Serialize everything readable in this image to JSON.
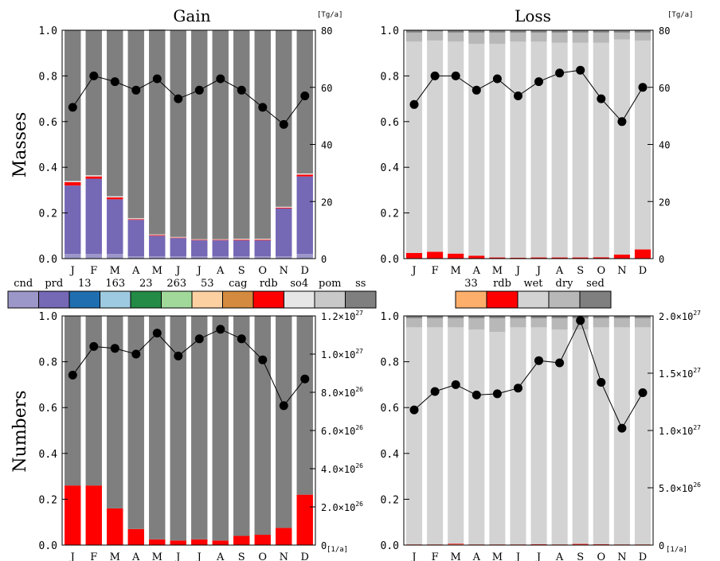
{
  "header": {
    "gain_title": "Gain",
    "loss_title": "Loss",
    "row_masses": "Masses",
    "row_numbers": "Numbers",
    "unit_tg_top_left": "[Tg/a]",
    "unit_tg_top_right": "[Tg/a]",
    "unit_per_a_bottom_left": "[1/a]",
    "unit_per_a_bottom_right": "[1/a]"
  },
  "legends": {
    "gain": {
      "labels": [
        "cnd",
        "prd",
        "13",
        "163",
        "23",
        "263",
        "53",
        "cag",
        "rdb",
        "so4",
        "pom",
        "ss"
      ],
      "colors": [
        "#9b97c8",
        "#7568b5",
        "#1f6fb0",
        "#9ecae1",
        "#238b45",
        "#a1d99b",
        "#fdd0a2",
        "#d48b3f",
        "#ff0000",
        "#e6e6e6",
        "#c8c8c8",
        "#7f7f7f"
      ]
    },
    "loss": {
      "labels": [
        "33",
        "rdb",
        "wet",
        "dry",
        "sed"
      ],
      "colors": [
        "#fdae6b",
        "#ff0000",
        "#d3d3d3",
        "#b8b8b8",
        "#7f7f7f"
      ]
    }
  },
  "colors": {
    "cnd": "#9b97c8",
    "prd": "#7568b5",
    "rdb": "#ff0000",
    "pom": "#c8c8c8",
    "ss": "#7f7f7f",
    "wet": "#d3d3d3",
    "dry": "#b8b8b8",
    "sed": "#7f7f7f",
    "c33": "#fdae6b",
    "marker": "#000000"
  },
  "chart_data": [
    {
      "id": "gain_masses",
      "type": "bar",
      "stacked": true,
      "categories": [
        "J",
        "F",
        "M",
        "A",
        "M",
        "J",
        "J",
        "A",
        "S",
        "O",
        "N",
        "D"
      ],
      "ylim": [
        0,
        1.0
      ],
      "y_ticks": [
        "0.0",
        "0.2",
        "0.4",
        "0.6",
        "0.8",
        "1.0"
      ],
      "y2lim": [
        0,
        80
      ],
      "y2_ticks": [
        "0",
        "20",
        "40",
        "60",
        "80"
      ],
      "y2_unit": "[Tg/a]",
      "series": [
        {
          "name": "cnd",
          "color": "#9b97c8",
          "values": [
            0.02,
            0.02,
            0.02,
            0.01,
            0.01,
            0.01,
            0.01,
            0.01,
            0.01,
            0.01,
            0.01,
            0.02
          ]
        },
        {
          "name": "prd",
          "color": "#7568b5",
          "values": [
            0.3,
            0.33,
            0.24,
            0.16,
            0.09,
            0.08,
            0.07,
            0.07,
            0.07,
            0.07,
            0.21,
            0.34
          ]
        },
        {
          "name": "rdb",
          "color": "#ff0000",
          "values": [
            0.015,
            0.01,
            0.008,
            0.003,
            0.003,
            0.002,
            0.002,
            0.002,
            0.003,
            0.003,
            0.003,
            0.008
          ]
        },
        {
          "name": "so4",
          "color": "#e6e6e6",
          "values": [
            0.005,
            0.005,
            0.005,
            0.004,
            0.003,
            0.003,
            0.003,
            0.003,
            0.004,
            0.004,
            0.004,
            0.005
          ]
        },
        {
          "name": "ss",
          "color": "#7f7f7f",
          "values": [
            0.66,
            0.635,
            0.727,
            0.823,
            0.897,
            0.905,
            0.915,
            0.915,
            0.913,
            0.913,
            0.773,
            0.627
          ]
        }
      ],
      "line": {
        "values": [
          53,
          64,
          62,
          59,
          63,
          56,
          59,
          63,
          59,
          53,
          47,
          57
        ]
      }
    },
    {
      "id": "loss_masses",
      "type": "bar",
      "stacked": true,
      "categories": [
        "J",
        "F",
        "M",
        "A",
        "M",
        "J",
        "J",
        "A",
        "S",
        "O",
        "N",
        "D"
      ],
      "ylim": [
        0,
        1.0
      ],
      "y_ticks": [
        "0.0",
        "0.2",
        "0.4",
        "0.6",
        "0.8",
        "1.0"
      ],
      "y2lim": [
        0,
        80
      ],
      "y2_ticks": [
        "0",
        "20",
        "40",
        "60",
        "80"
      ],
      "y2_unit": "[Tg/a]",
      "series": [
        {
          "name": "rdb",
          "color": "#ff0000",
          "values": [
            0.025,
            0.03,
            0.022,
            0.013,
            0.005,
            0.004,
            0.005,
            0.005,
            0.005,
            0.006,
            0.018,
            0.04
          ]
        },
        {
          "name": "wet",
          "color": "#d3d3d3",
          "values": [
            0.925,
            0.925,
            0.928,
            0.927,
            0.935,
            0.946,
            0.945,
            0.94,
            0.94,
            0.939,
            0.942,
            0.915
          ]
        },
        {
          "name": "dry",
          "color": "#b8b8b8",
          "values": [
            0.04,
            0.04,
            0.04,
            0.05,
            0.05,
            0.04,
            0.04,
            0.045,
            0.045,
            0.045,
            0.03,
            0.035
          ]
        },
        {
          "name": "sed",
          "color": "#7f7f7f",
          "values": [
            0.01,
            0.005,
            0.01,
            0.01,
            0.01,
            0.01,
            0.01,
            0.01,
            0.01,
            0.01,
            0.01,
            0.01
          ]
        }
      ],
      "line": {
        "values": [
          54,
          64,
          64,
          59,
          63,
          57,
          62,
          65,
          66,
          56,
          48,
          60
        ]
      }
    },
    {
      "id": "gain_numbers",
      "type": "bar",
      "stacked": true,
      "categories": [
        "J",
        "F",
        "M",
        "A",
        "M",
        "J",
        "J",
        "A",
        "S",
        "O",
        "N",
        "D"
      ],
      "ylim": [
        0,
        1.0
      ],
      "y_ticks": [
        "0.0",
        "0.2",
        "0.4",
        "0.6",
        "0.8",
        "1.0"
      ],
      "y2lim": [
        0,
        1.2e+27
      ],
      "y2_ticks": [
        {
          "value": 0,
          "label": "0"
        },
        {
          "value": 2e+26,
          "label": "2.0×10",
          "exp": "26"
        },
        {
          "value": 4e+26,
          "label": "4.0×10",
          "exp": "26"
        },
        {
          "value": 6e+26,
          "label": "6.0×10",
          "exp": "26"
        },
        {
          "value": 8e+26,
          "label": "8.0×10",
          "exp": "26"
        },
        {
          "value": 1e+27,
          "label": "1.0×10",
          "exp": "27"
        },
        {
          "value": 1.2e+27,
          "label": "1.2×10",
          "exp": "27"
        }
      ],
      "y2_unit": "[1/a]",
      "series": [
        {
          "name": "rdb",
          "color": "#ff0000",
          "values": [
            0.26,
            0.26,
            0.16,
            0.07,
            0.025,
            0.02,
            0.025,
            0.02,
            0.04,
            0.045,
            0.075,
            0.22
          ]
        },
        {
          "name": "ss",
          "color": "#7f7f7f",
          "values": [
            0.74,
            0.74,
            0.84,
            0.93,
            0.975,
            0.98,
            0.975,
            0.98,
            0.96,
            0.955,
            0.925,
            0.78
          ]
        }
      ],
      "line": {
        "values": [
          8.9e+26,
          1.04e+27,
          1.03e+27,
          1e+27,
          1.11e+27,
          9.9e+26,
          1.08e+27,
          1.13e+27,
          1.08e+27,
          9.7e+26,
          7.3e+26,
          8.7e+26
        ]
      }
    },
    {
      "id": "loss_numbers",
      "type": "bar",
      "stacked": true,
      "categories": [
        "J",
        "F",
        "M",
        "A",
        "M",
        "J",
        "J",
        "A",
        "S",
        "O",
        "N",
        "D"
      ],
      "ylim": [
        0,
        1.0
      ],
      "y_ticks": [
        "0.0",
        "0.2",
        "0.4",
        "0.6",
        "0.8",
        "1.0"
      ],
      "y2lim": [
        0,
        2e+27
      ],
      "y2_ticks": [
        {
          "value": 0,
          "label": "0"
        },
        {
          "value": 5e+26,
          "label": "5.0×10",
          "exp": "26"
        },
        {
          "value": 1e+27,
          "label": "1.0×10",
          "exp": "27"
        },
        {
          "value": 1.5e+27,
          "label": "1.5×10",
          "exp": "27"
        },
        {
          "value": 2e+27,
          "label": "2.0×10",
          "exp": "27"
        }
      ],
      "y2_unit": "[1/a]",
      "series": [
        {
          "name": "33",
          "color": "#fdae6b",
          "values": [
            0.002,
            0.002,
            0.003,
            0.002,
            0.002,
            0.002,
            0.002,
            0.002,
            0.002,
            0.002,
            0.002,
            0.002
          ]
        },
        {
          "name": "rdb",
          "color": "#ff0000",
          "values": [
            0.001,
            0.001,
            0.003,
            0.001,
            0.001,
            0.001,
            0.002,
            0.001,
            0.003,
            0.002,
            0.001,
            0.001
          ]
        },
        {
          "name": "wet",
          "color": "#d3d3d3",
          "values": [
            0.947,
            0.947,
            0.944,
            0.937,
            0.927,
            0.947,
            0.946,
            0.937,
            0.935,
            0.946,
            0.947,
            0.947
          ]
        },
        {
          "name": "dry",
          "color": "#b8b8b8",
          "values": [
            0.04,
            0.04,
            0.04,
            0.05,
            0.06,
            0.04,
            0.04,
            0.05,
            0.05,
            0.04,
            0.04,
            0.04
          ]
        },
        {
          "name": "sed",
          "color": "#7f7f7f",
          "values": [
            0.01,
            0.01,
            0.01,
            0.01,
            0.01,
            0.01,
            0.01,
            0.01,
            0.01,
            0.01,
            0.01,
            0.01
          ]
        }
      ],
      "line": {
        "values": [
          1.18e+27,
          1.34e+27,
          1.4e+27,
          1.31e+27,
          1.32e+27,
          1.37e+27,
          1.61e+27,
          1.59e+27,
          1.96e+27,
          1.42e+27,
          1.02e+27,
          1.33e+27
        ]
      }
    }
  ]
}
